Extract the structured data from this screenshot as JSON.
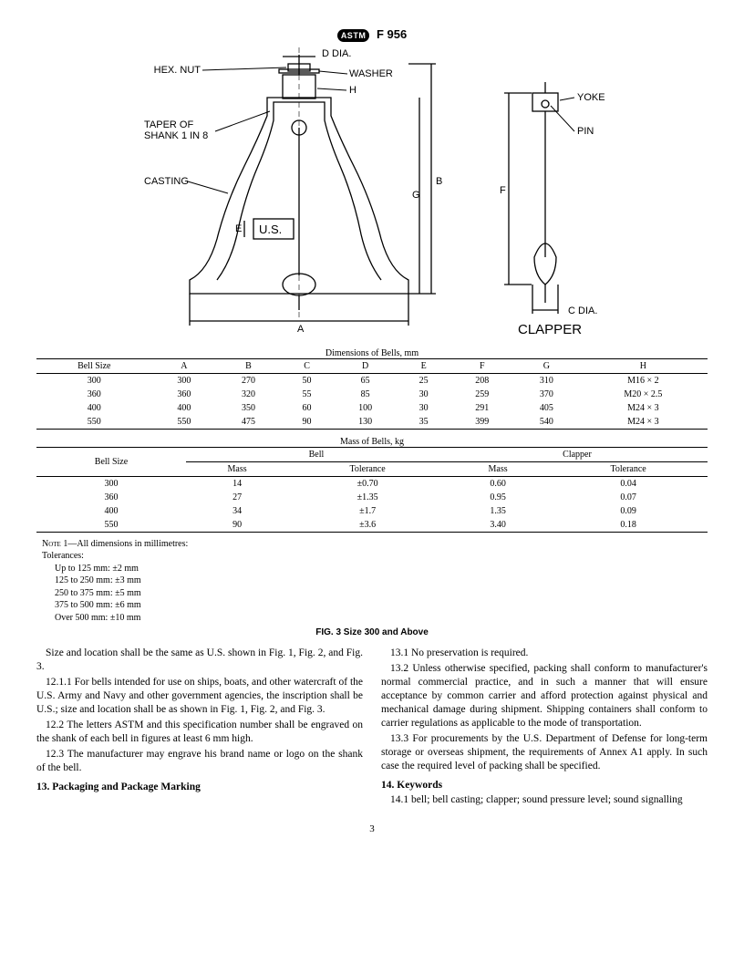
{
  "header": {
    "badge": "ASTM",
    "spec": "F 956"
  },
  "figure": {
    "labels": {
      "hex_nut": "HEX. NUT",
      "washer": "WASHER",
      "d_dia": "D DIA.",
      "h": "H",
      "taper": "TAPER OF\nSHANK 1 IN 8",
      "casting": "CASTING",
      "us": "U.S.",
      "e": "E",
      "a": "A",
      "b": "B",
      "g": "G",
      "yoke": "YOKE",
      "pin": "PIN",
      "f": "F",
      "c_dia": "C DIA.",
      "clapper": "CLAPPER"
    }
  },
  "dim_table": {
    "caption": "Dimensions of Bells, mm",
    "cols": [
      "Bell Size",
      "A",
      "B",
      "C",
      "D",
      "E",
      "F",
      "G",
      "H"
    ],
    "rows": [
      [
        "300",
        "300",
        "270",
        "50",
        "65",
        "25",
        "208",
        "310",
        "M16 × 2"
      ],
      [
        "360",
        "360",
        "320",
        "55",
        "85",
        "30",
        "259",
        "370",
        "M20 × 2.5"
      ],
      [
        "400",
        "400",
        "350",
        "60",
        "100",
        "30",
        "291",
        "405",
        "M24 × 3"
      ],
      [
        "550",
        "550",
        "475",
        "90",
        "130",
        "35",
        "399",
        "540",
        "M24 × 3"
      ]
    ]
  },
  "mass_table": {
    "caption": "Mass of Bells, kg",
    "group1": "Bell",
    "group2": "Clapper",
    "col0": "Bell Size",
    "sub": [
      "Mass",
      "Tolerance",
      "Mass",
      "Tolerance"
    ],
    "rows": [
      [
        "300",
        "14",
        "±0.70",
        "0.60",
        "0.04"
      ],
      [
        "360",
        "27",
        "±1.35",
        "0.95",
        "0.07"
      ],
      [
        "400",
        "34",
        "±1.7",
        "1.35",
        "0.09"
      ],
      [
        "550",
        "90",
        "±3.6",
        "3.40",
        "0.18"
      ]
    ]
  },
  "notes": {
    "note1_label": "Note",
    "note1_rest": " 1—All dimensions in millimetres:",
    "tol_label": "Tolerances:",
    "tol": [
      "Up to 125 mm: ±2 mm",
      "125 to 250 mm: ±3 mm",
      "250 to 375 mm: ±5 mm",
      "375 to 500 mm: ±6 mm",
      "Over 500 mm: ±10 mm"
    ]
  },
  "fig_title": "FIG. 3 Size 300 and Above",
  "body": {
    "p1": "Size and location shall be the same as U.S. shown in Fig. 1, Fig. 2, and Fig. 3.",
    "p2": "12.1.1 For bells intended for use on ships, boats, and other watercraft of the U.S. Army and Navy and other government agencies, the inscription shall be U.S.; size and location shall be as shown in Fig. 1, Fig. 2, and Fig. 3.",
    "p3": "12.2 The letters ASTM and this specification number shall be engraved on the shank of each bell in figures at least 6 mm high.",
    "p4": "12.3 The manufacturer may engrave his brand name or logo on the shank of the bell.",
    "s13": "13. Packaging and Package Marking",
    "p5": "13.1 No preservation is required.",
    "p6": "13.2 Unless otherwise specified, packing shall conform to manufacturer's normal commercial practice, and in such a manner that will ensure acceptance by common carrier and afford protection against physical and mechanical damage during shipment. Shipping containers shall conform to carrier regulations as applicable to the mode of transportation.",
    "p7": "13.3 For procurements by the U.S. Department of Defense for long-term storage or overseas shipment, the requirements of Annex A1 apply. In such case the required level of packing shall be specified.",
    "s14": "14. Keywords",
    "p8": "14.1 bell; bell casting; clapper; sound pressure level; sound signalling"
  },
  "page_num": "3"
}
